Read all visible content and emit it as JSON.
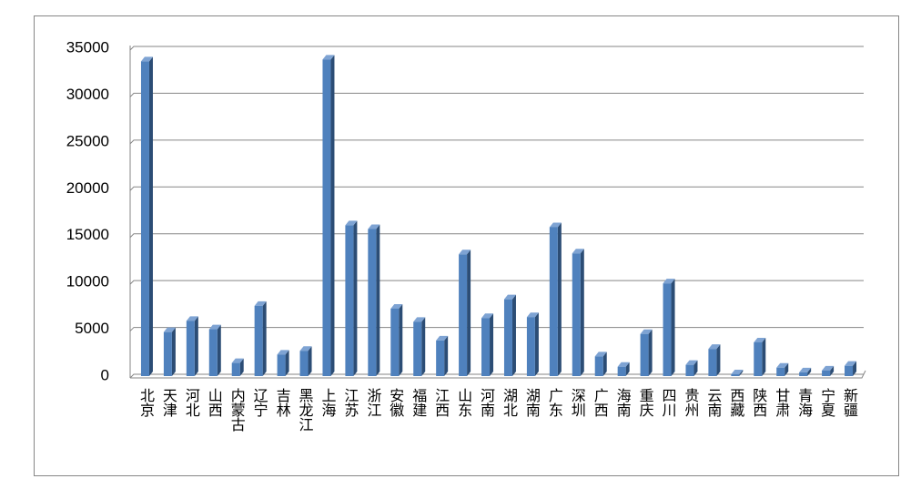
{
  "chart_data": {
    "type": "bar",
    "categories": [
      "北京",
      "天津",
      "河北",
      "山西",
      "内蒙古",
      "辽宁",
      "吉林",
      "黑龙江",
      "上海",
      "江苏",
      "浙江",
      "安徽",
      "福建",
      "江西",
      "山东",
      "河南",
      "湖北",
      "湖南",
      "广东",
      "深圳",
      "广西",
      "海南",
      "重庆",
      "四川",
      "贵州",
      "云南",
      "西藏",
      "陕西",
      "甘肃",
      "青海",
      "宁夏",
      "新疆"
    ],
    "values": [
      33600,
      4700,
      5900,
      5000,
      1400,
      7500,
      2300,
      2700,
      33800,
      16100,
      15700,
      7200,
      5800,
      3800,
      13000,
      6200,
      8200,
      6300,
      15900,
      13100,
      2100,
      1000,
      4500,
      9900,
      1200,
      2900,
      200,
      3600,
      900,
      400,
      600,
      1100
    ],
    "color": "#4f81bd",
    "ylim": [
      0,
      35000
    ],
    "yticks": [
      0,
      5000,
      10000,
      15000,
      20000,
      25000,
      30000,
      35000
    ],
    "grid": true
  }
}
